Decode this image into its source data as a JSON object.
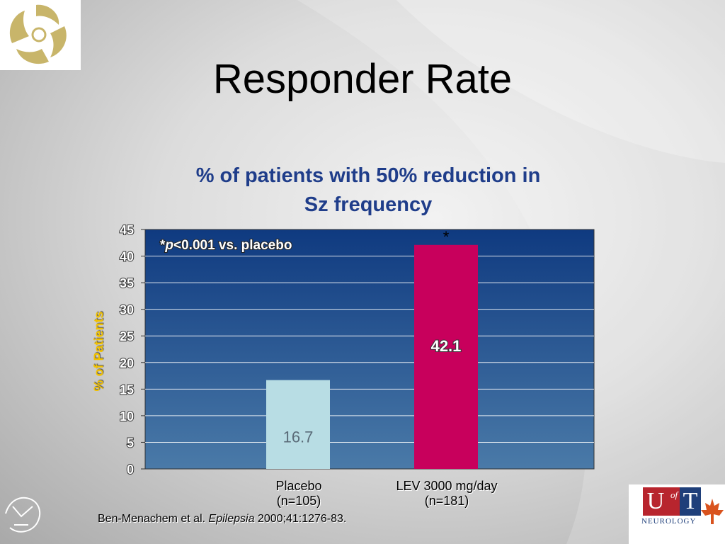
{
  "slide": {
    "title": "Responder Rate",
    "citation_authors": "Ben-Menachem et al.",
    "citation_journal": "Epilepsia",
    "citation_ref": "2000;41:1276-83."
  },
  "logos": {
    "top_left": "wheel-logo",
    "bottom_left": "seal-logo",
    "bottom_right_u": "U",
    "bottom_right_of": "of",
    "bottom_right_t": "T",
    "bottom_right_dept": "NEUROLOGY"
  },
  "chart_data": {
    "type": "bar",
    "title": "% of patients with 50% reduction in Sz frequency",
    "title_lines": [
      "% of patients with 50% reduction in",
      "Sz frequency"
    ],
    "ylabel": "% of Patients",
    "xlabel": "",
    "ylim": [
      0,
      45
    ],
    "yticks": [
      0,
      5,
      10,
      15,
      20,
      25,
      30,
      35,
      40,
      45
    ],
    "grid": true,
    "categories": [
      {
        "line1": "Placebo",
        "line2": "(n=105)"
      },
      {
        "line1": "LEV 3000 mg/day",
        "line2": "(n=181)"
      }
    ],
    "values": [
      16.7,
      42.1
    ],
    "value_labels": [
      "16.7",
      "42.1"
    ],
    "bar_colors": [
      "#b8dde4",
      "#c8005c"
    ],
    "value_label_colors": [
      "#5a6b78",
      "#ffffff"
    ],
    "significance_marker": "*",
    "significance_marker_index": 1,
    "annotation_star": "*",
    "annotation_p": "p",
    "annotation_rest": "<0.001 vs. placebo",
    "plot_gradient_top": "#0f3a80",
    "plot_gradient_bottom": "#4a7aa8"
  }
}
